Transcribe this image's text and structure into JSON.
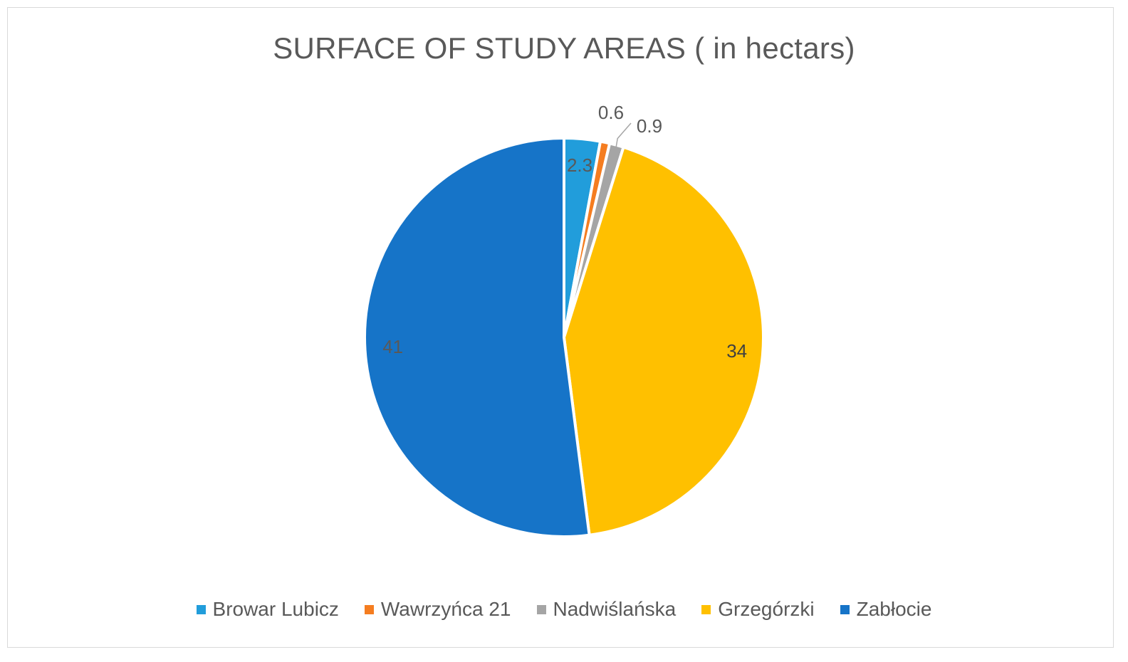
{
  "chart_data": {
    "type": "pie",
    "title": "SURFACE OF STUDY AREAS ( in hectars)",
    "categories": [
      "Browar Lubicz",
      "Wawrzyńca 21",
      "Nadwiślańska",
      "Grzegórzki",
      "Zabłocie"
    ],
    "values": [
      2.3,
      0.6,
      0.9,
      34,
      41
    ],
    "data_labels": [
      "2.3",
      "0.6",
      "0.9",
      "34",
      "41"
    ],
    "colors": [
      "#219ddb",
      "#f57d20",
      "#a5a5a5",
      "#ffc000",
      "#1674c8"
    ],
    "legend_position": "bottom",
    "start_angle": "12 o'clock",
    "direction": "clockwise"
  }
}
